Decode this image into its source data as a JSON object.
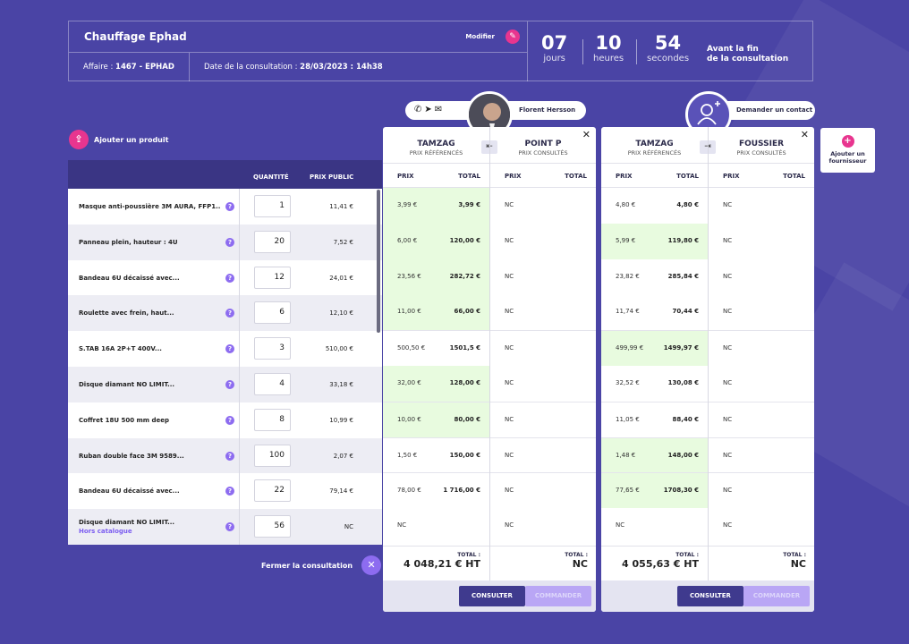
{
  "header": {
    "title": "Chauffage Ephad",
    "modify_label": "Modifier",
    "affaire_label": "Affaire : ",
    "affaire_value": "1467 - EPHAD",
    "date_label": "Date de la consultation : ",
    "date_value": "28/03/2023 : 14h38",
    "timer": {
      "days": "07",
      "days_unit": "jours",
      "hours": "10",
      "hours_unit": "heures",
      "seconds": "54",
      "seconds_unit": "secondes",
      "label_line1": "Avant la fin",
      "label_line2": "de la consultation"
    }
  },
  "add_product_label": "Ajouter un produit",
  "products_table": {
    "col_qty": "QUANTITÉ",
    "col_price": "PRIX PUBLIC",
    "rows": [
      {
        "name": "Masque anti-poussière 3M AURA, FFP1...",
        "qty": "1",
        "price": "11,41 €"
      },
      {
        "name": "Panneau plein, hauteur : 4U",
        "qty": "20",
        "price": "7,52 €"
      },
      {
        "name": "Bandeau 6U décaissé avec...",
        "qty": "12",
        "price": "24,01 €"
      },
      {
        "name": "Roulette avec frein, haut...",
        "qty": "6",
        "price": "12,10 €"
      },
      {
        "name": "S.TAB 16A 2P+T 400V...",
        "qty": "3",
        "price": "510,00 €"
      },
      {
        "name": "Disque diamant NO LIMIT...",
        "qty": "4",
        "price": "33,18 €"
      },
      {
        "name": "Coffret 18U 500 mm deep",
        "qty": "8",
        "price": "10,99 €"
      },
      {
        "name": "Ruban double face 3M 9589...",
        "qty": "100",
        "price": "2,07 €"
      },
      {
        "name": "Bandeau 6U décaissé avec...",
        "qty": "22",
        "price": "79,14 €"
      },
      {
        "name": "Disque diamant NO LIMIT...",
        "sub": "Hors catalogue",
        "qty": "56",
        "price": "NC"
      }
    ]
  },
  "close_consultation_label": "Fermer la consultation",
  "contacts": {
    "contact1_name": "Florent Hersson",
    "contact2_label": "Demander un contact"
  },
  "add_supplier_label_1": "Ajouter un",
  "add_supplier_label_2": "fournisseur",
  "col_prix": "PRIX",
  "col_total": "TOTAL",
  "total_label": "TOTAL :",
  "btn_consult": "CONSULTER",
  "btn_order": "COMMANDER",
  "panels": [
    {
      "left": {
        "name": "TAMZAG",
        "sub": "PRIX RÉFÉRENCÉS",
        "rows": [
          {
            "p": "3,99 €",
            "t": "3,99 €",
            "g": true
          },
          {
            "p": "6,00 €",
            "t": "120,00 €",
            "g": true
          },
          {
            "p": "23,56 €",
            "t": "282,72 €",
            "g": true
          },
          {
            "p": "11,00 €",
            "t": "66,00 €",
            "g": true
          },
          {
            "p": "500,50 €",
            "t": "1501,5 €",
            "g": false
          },
          {
            "p": "32,00 €",
            "t": "128,00 €",
            "g": true
          },
          {
            "p": "10,00 €",
            "t": "80,00 €",
            "g": true
          },
          {
            "p": "1,50 €",
            "t": "150,00 €",
            "g": false
          },
          {
            "p": "78,00 €",
            "t": "1 716,00 €",
            "g": false
          },
          {
            "p": "NC",
            "t": "",
            "g": false
          }
        ],
        "total": "4 048,21 € HT"
      },
      "right": {
        "name": "POINT P",
        "sub": "PRIX CONSULTÉS",
        "rows": [
          "NC",
          "NC",
          "NC",
          "NC",
          "NC",
          "NC",
          "NC",
          "NC",
          "NC",
          "NC"
        ],
        "total": "NC"
      }
    },
    {
      "left": {
        "name": "TAMZAG",
        "sub": "PRIX RÉFÉRENCÉS",
        "rows": [
          {
            "p": "4,80 €",
            "t": "4,80 €",
            "g": false
          },
          {
            "p": "5,99 €",
            "t": "119,80 €",
            "g": true
          },
          {
            "p": "23,82 €",
            "t": "285,84 €",
            "g": false
          },
          {
            "p": "11,74 €",
            "t": "70,44 €",
            "g": false
          },
          {
            "p": "499,99 €",
            "t": "1499,97 €",
            "g": true
          },
          {
            "p": "32,52 €",
            "t": "130,08 €",
            "g": false
          },
          {
            "p": "11,05 €",
            "t": "88,40 €",
            "g": false
          },
          {
            "p": "1,48 €",
            "t": "148,00 €",
            "g": true
          },
          {
            "p": "77,65 €",
            "t": "1708,30 €",
            "g": true
          },
          {
            "p": "NC",
            "t": "",
            "g": false
          }
        ],
        "total": "4 055,63 € HT"
      },
      "right": {
        "name": "FOUSSIER",
        "sub": "PRIX CONSULTÉS",
        "rows": [
          "NC",
          "NC",
          "NC",
          "NC",
          "NC",
          "NC",
          "NC",
          "NC",
          "NC",
          "NC"
        ],
        "total": "NC"
      }
    }
  ]
}
